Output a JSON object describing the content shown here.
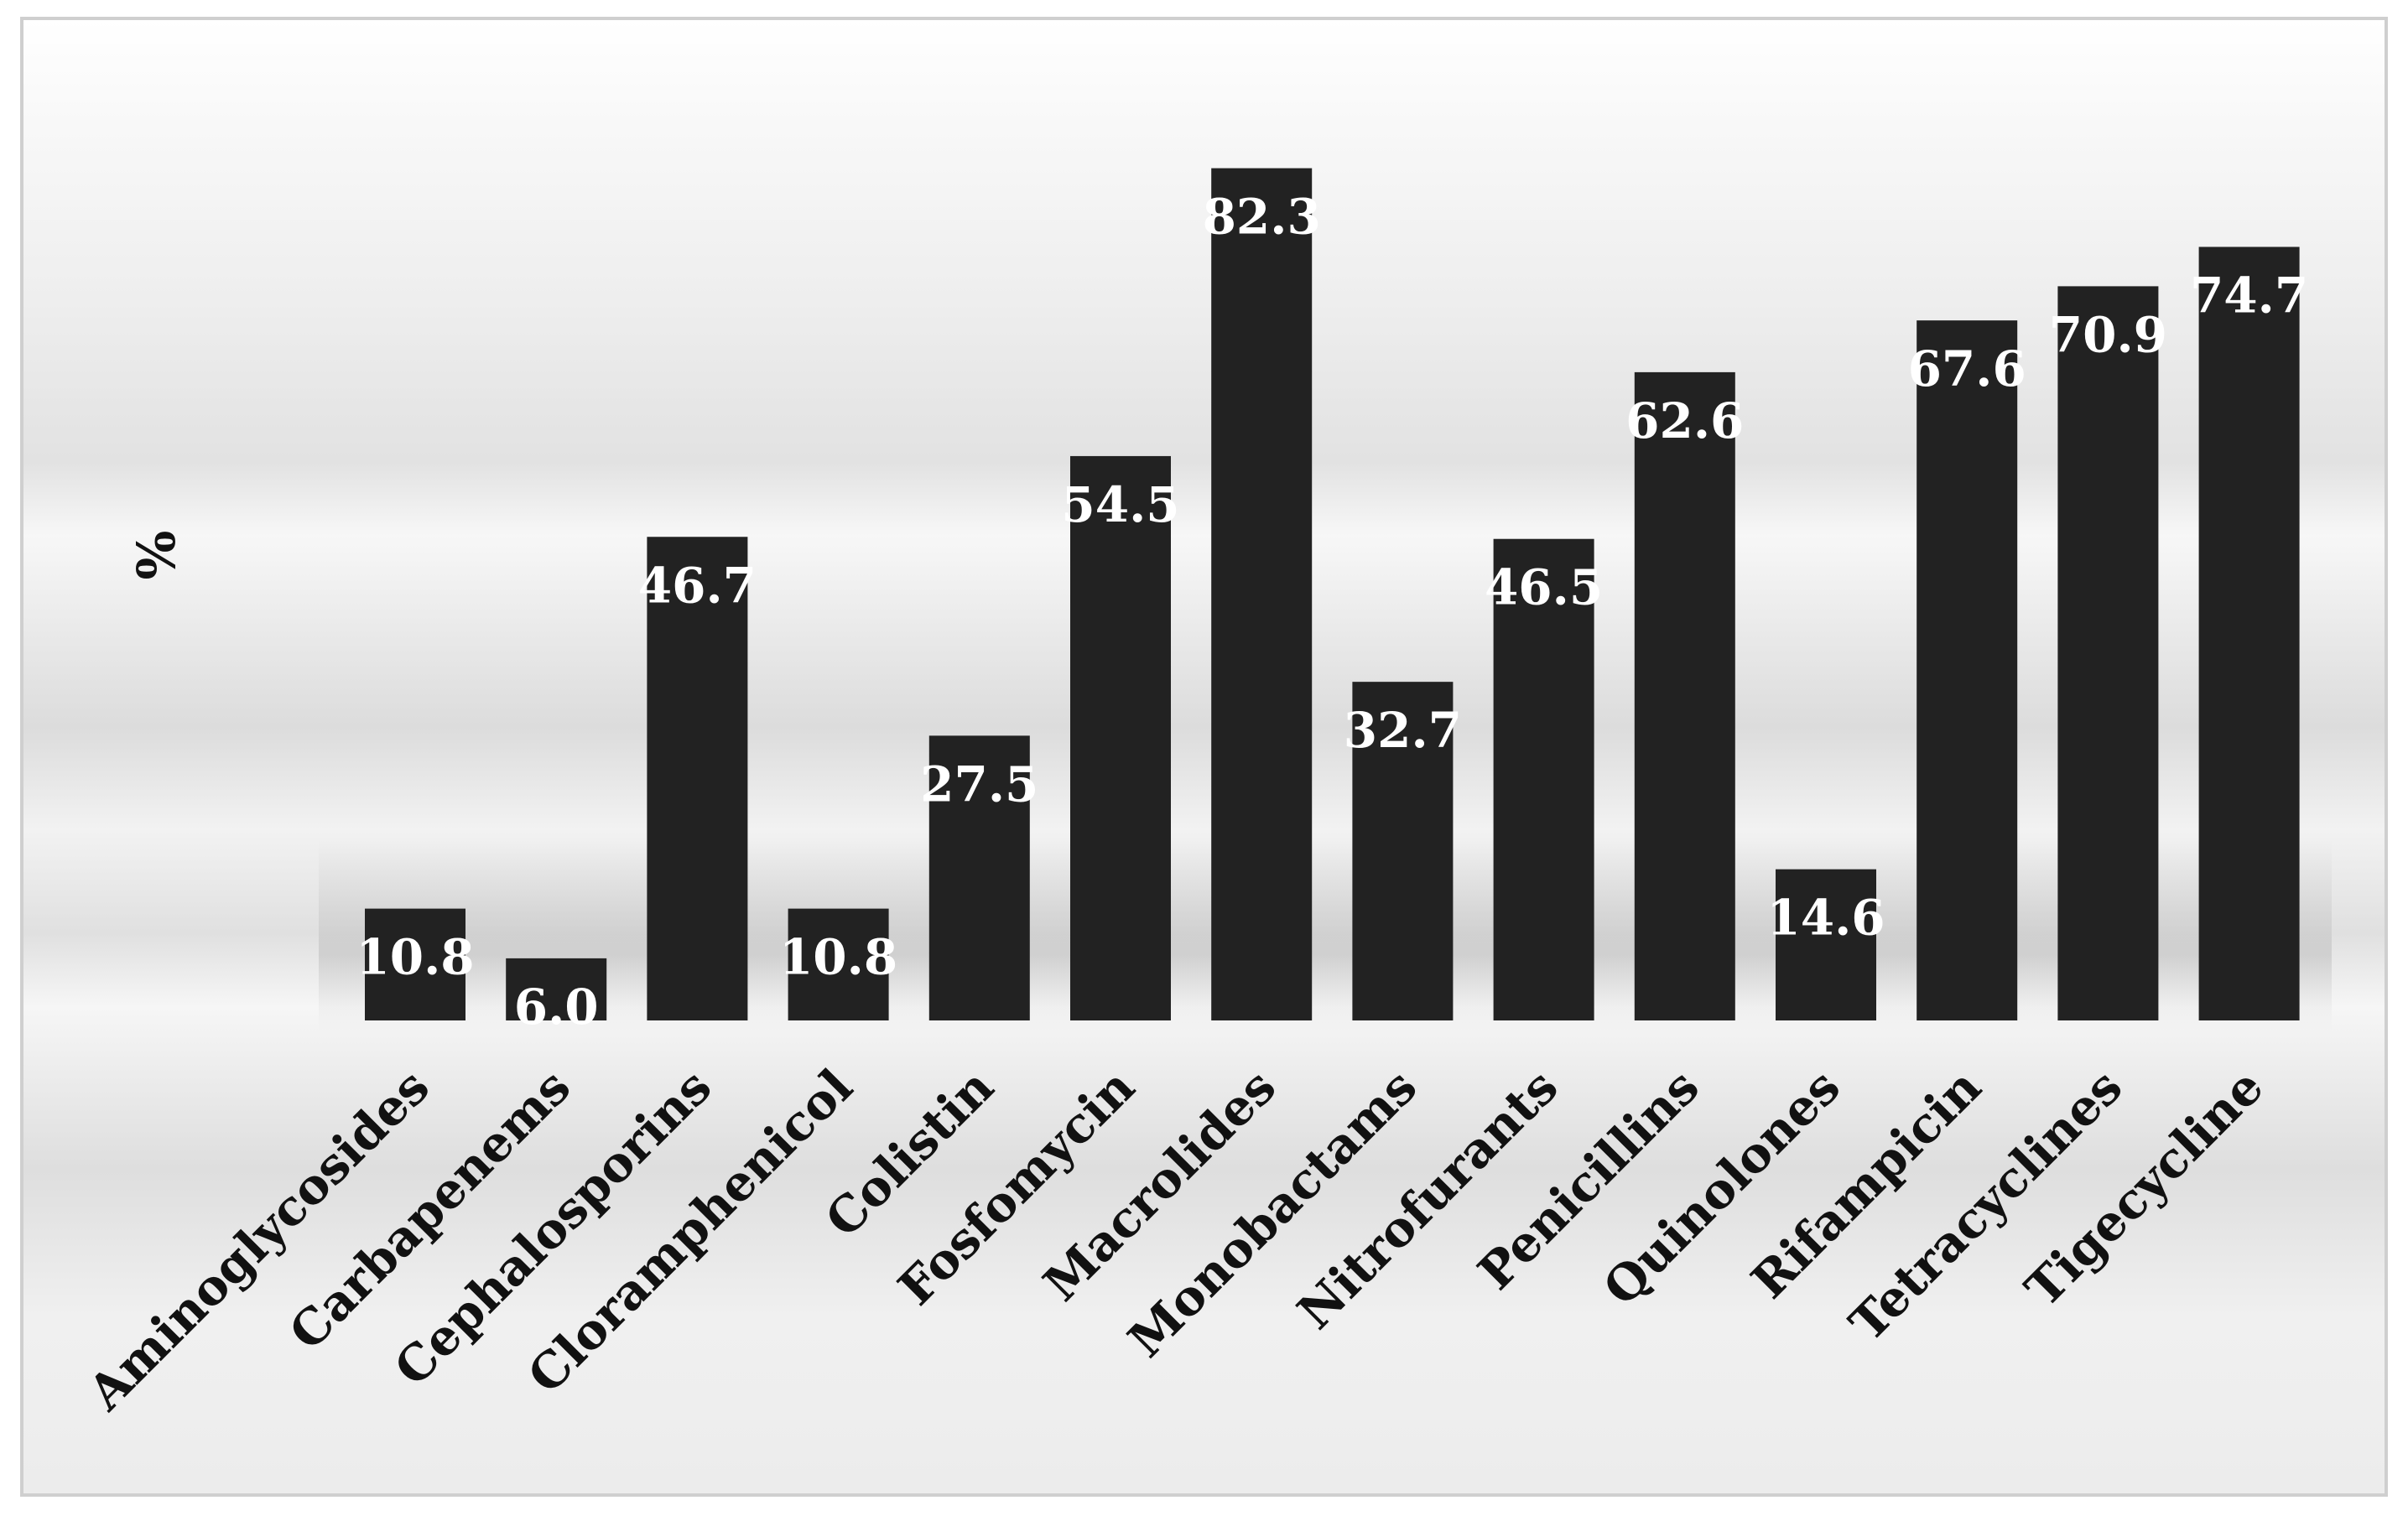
{
  "chart_data": {
    "type": "bar",
    "title": "",
    "ylabel": "%",
    "xlabel": "",
    "ylim": [
      0,
      100
    ],
    "grid": false,
    "legend": "none",
    "bar_color": "#222222",
    "label_color": "#ffffff",
    "categories": [
      "Aminoglycosides",
      "Carbapenems",
      "Cephalosporins",
      "Cloramphenicol",
      "Colistin",
      "Fosfomycin",
      "Macrolides",
      "Monobactams",
      "Nitrofurants",
      "Penicillins",
      "Quinolones",
      "Rifampicin",
      "Tetracyclines",
      "Tigecycline"
    ],
    "values": [
      10.8,
      6.0,
      46.7,
      10.8,
      27.5,
      54.5,
      82.3,
      32.7,
      46.5,
      62.6,
      14.6,
      67.6,
      70.9,
      74.7
    ],
    "value_labels": [
      "10.8",
      "6.0",
      "46.7",
      "10.8",
      "27.5",
      "54.5",
      "82.3",
      "32.7",
      "46.5",
      "62.6",
      "14.6",
      "67.6",
      "70.9",
      "74.7"
    ]
  }
}
